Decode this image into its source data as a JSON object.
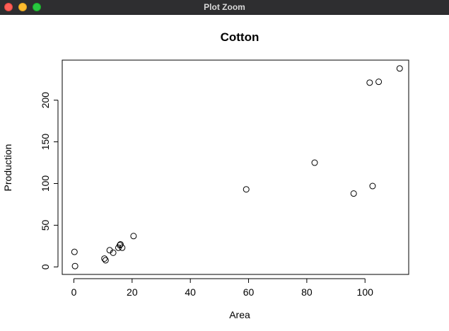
{
  "window": {
    "title": "Plot Zoom"
  },
  "chart_data": {
    "type": "scatter",
    "title": "Cotton",
    "xlabel": "Area",
    "ylabel": "Production",
    "xlim": [
      -4,
      115
    ],
    "ylim": [
      -9,
      248
    ],
    "xticks": [
      0,
      20,
      40,
      60,
      80,
      100
    ],
    "xtick_labels": [
      "0",
      "20",
      "40",
      "60",
      "80",
      "100"
    ],
    "yticks": [
      0,
      50,
      100,
      150,
      200
    ],
    "ytick_labels": [
      "0",
      "50",
      "100",
      "150",
      "200"
    ],
    "grid": false,
    "marker": "open-circle",
    "points": [
      {
        "x": 0.2,
        "y": 18
      },
      {
        "x": 0.4,
        "y": 1
      },
      {
        "x": 10.5,
        "y": 10
      },
      {
        "x": 10.9,
        "y": 8
      },
      {
        "x": 12.3,
        "y": 20
      },
      {
        "x": 13.5,
        "y": 17
      },
      {
        "x": 15.3,
        "y": 23
      },
      {
        "x": 15.8,
        "y": 26
      },
      {
        "x": 16.0,
        "y": 27
      },
      {
        "x": 16.6,
        "y": 23
      },
      {
        "x": 20.5,
        "y": 37
      },
      {
        "x": 59.2,
        "y": 93
      },
      {
        "x": 82.7,
        "y": 125
      },
      {
        "x": 96.1,
        "y": 88
      },
      {
        "x": 101.6,
        "y": 221
      },
      {
        "x": 102.6,
        "y": 97
      },
      {
        "x": 104.7,
        "y": 222
      },
      {
        "x": 111.9,
        "y": 238
      }
    ]
  },
  "colors": {
    "titlebar": "#2e2e30",
    "close": "#ff5f57",
    "minimize": "#febc2e",
    "zoom": "#28c840",
    "ink": "#000000"
  }
}
